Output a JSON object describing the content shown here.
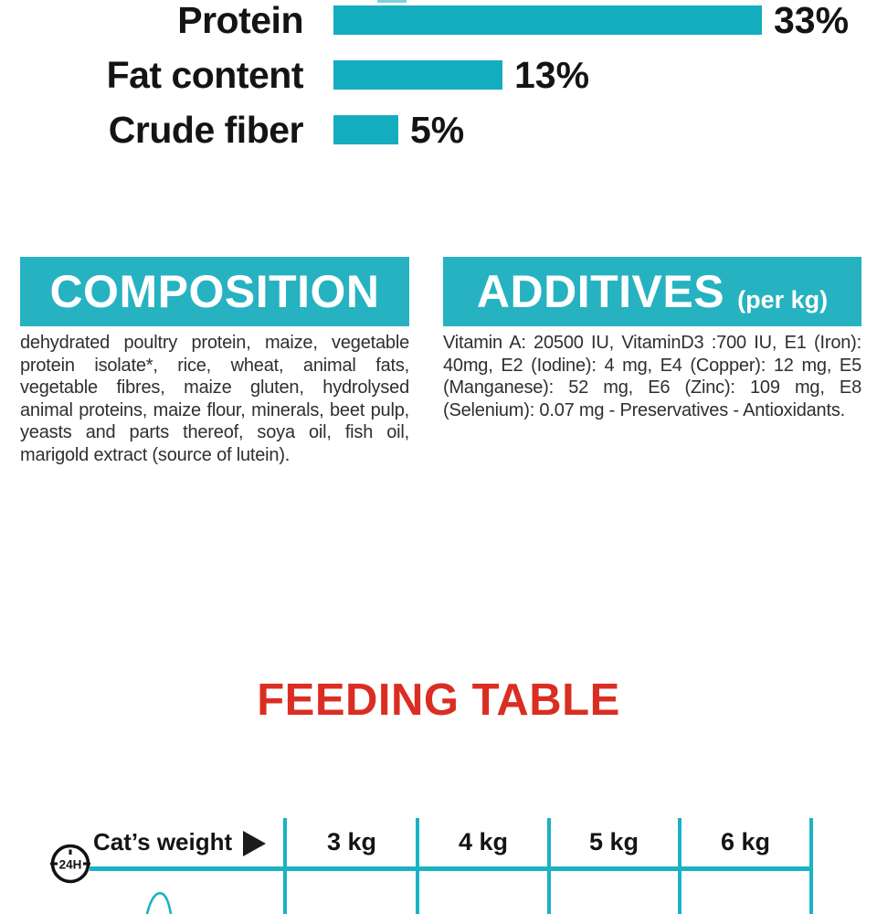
{
  "colors": {
    "teal_bar": "#14adbf",
    "teal_box": "#26b2c1",
    "teal_line": "#1ab3c3",
    "red_title": "#da2e22"
  },
  "chart_data": {
    "type": "bar",
    "orientation": "horizontal",
    "title": "",
    "categories": [
      "Protein",
      "Fat content",
      "Crude fiber"
    ],
    "values": [
      33,
      13,
      5
    ],
    "value_labels": [
      "33%",
      "13%",
      "5%"
    ],
    "unit": "%",
    "xlim": [
      0,
      35
    ],
    "bar_color": "#14adbf",
    "grid": false,
    "legend": false
  },
  "composition": {
    "title": "COMPOSITION",
    "body": "dehydrated poultry protein, maize, vegetable protein isolate*, rice, wheat, animal fats, vegetable fibres, maize gluten, hydrolysed animal proteins, maize flour, minerals, beet pulp, yeasts and parts thereof, soya oil, fish oil, marigold extract (source of lutein)."
  },
  "additives": {
    "title": "ADDITIVES",
    "subtitle": "(per kg)",
    "body": "Vitamin A: 20500 IU, VitaminD3 :700 IU, E1 (Iron): 40mg, E2 (Iodine): 4 mg, E4 (Copper): 12 mg, E5 (Manganese): 52 mg, E6 (Zinc): 109 mg, E8 (Selenium): 0.07 mg - Preservatives - Antioxidants."
  },
  "feeding_table": {
    "title": "FEEDING TABLE",
    "icon_label": "24H",
    "row_header": "Cat’s weight",
    "columns": [
      "3 kg",
      "4 kg",
      "5 kg",
      "6 kg"
    ]
  }
}
